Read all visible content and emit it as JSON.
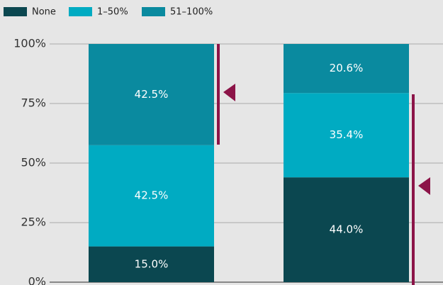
{
  "chart_data": {
    "type": "stacked_bar",
    "categories": [
      null,
      null
    ],
    "series": [
      {
        "name": "None",
        "color": "#0b4750",
        "values": [
          15.0,
          44.0
        ],
        "value_labels": [
          "15.0%",
          "44.0%"
        ]
      },
      {
        "name": "1–50%",
        "color": "#00abc2",
        "values": [
          42.5,
          35.4
        ],
        "value_labels": [
          "42.5%",
          "35.4%"
        ]
      },
      {
        "name": "51–100%",
        "color": "#0a8a9f",
        "values": [
          42.5,
          20.6
        ],
        "value_labels": [
          "42.5%",
          "20.6%"
        ]
      }
    ],
    "ylim": [
      0,
      100
    ],
    "yticks": [
      {
        "value": 0,
        "label": "0%"
      },
      {
        "value": 25,
        "label": "25%"
      },
      {
        "value": 50,
        "label": "50%"
      },
      {
        "value": 75,
        "label": "75%"
      },
      {
        "value": 100,
        "label": "100%"
      }
    ],
    "grid": true
  }
}
